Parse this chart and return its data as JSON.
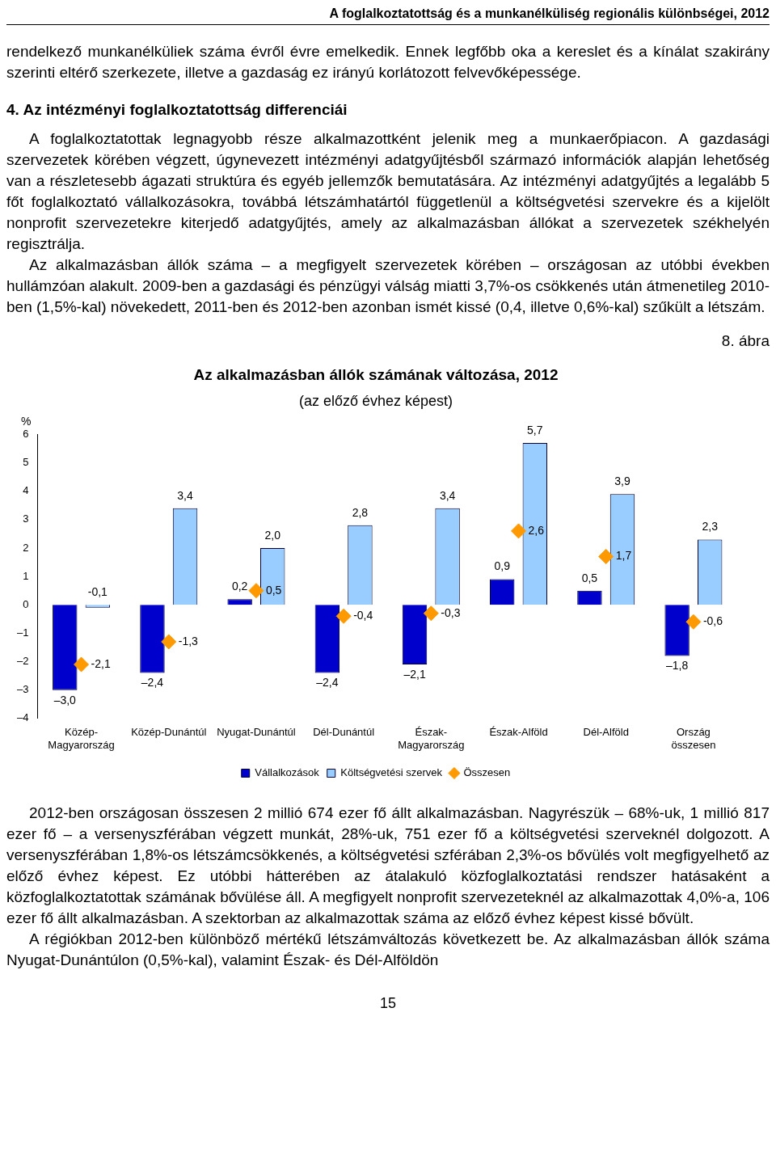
{
  "chart_data": {
    "type": "bar",
    "title": "Az alkalmazásban állók számának változása, 2012",
    "subtitle": "(az előző évhez képest)",
    "ylabel": "%",
    "categories": [
      "Közép-\nMagyarország",
      "Közép-Dunántúl",
      "Nyugat-Dunántúl",
      "Dél-Dunántúl",
      "Észak-\nMagyarország",
      "Észak-Alföld",
      "Dél-Alföld",
      "Ország\nösszesen"
    ],
    "series": [
      {
        "name": "Vállalkozások",
        "color": "#0000cc",
        "values": [
          -3.0,
          -2.4,
          0.2,
          -2.4,
          -2.1,
          0.9,
          0.5,
          -1.8
        ],
        "value_labels": [
          "–3,0",
          "–2,4",
          "0,2",
          "–2,4",
          "–2,1",
          "0,9",
          "0,5",
          "–1,8"
        ]
      },
      {
        "name": "Költségvetési szervek",
        "color": "#99ccff",
        "values": [
          -0.1,
          3.4,
          2.0,
          2.8,
          3.4,
          5.7,
          3.9,
          2.3
        ],
        "value_labels": [
          "-0,1",
          "3,4",
          "2,0",
          "2,8",
          "3,4",
          "5,7",
          "3,9",
          "2,3"
        ]
      },
      {
        "name": "Összesen",
        "type": "scatter",
        "color": "#ff9900",
        "marker": "diamond",
        "x": [
          "Közép-\nMagyarország",
          "Közép-Dunántúl",
          "Nyugat-Dunántúl",
          "Dél-Dunántúl",
          "Észak-\nMagyarország",
          "Észak-Alföld",
          "Dél-Alföld",
          "Ország\nösszesen"
        ],
        "values": [
          -2.1,
          -1.3,
          0.5,
          -0.4,
          -0.3,
          2.6,
          1.7,
          -0.6
        ],
        "value_labels": [
          "-2,1",
          "-1,3",
          "0,5",
          "-0,4",
          "-0,3",
          "2,6",
          "1,7",
          "-0,6"
        ]
      }
    ],
    "ylim": [
      -4,
      6
    ],
    "yticks": [
      {
        "value": -4,
        "label": "–4"
      },
      {
        "value": -3,
        "label": "–3"
      },
      {
        "value": -2,
        "label": "–2"
      },
      {
        "value": -1,
        "label": "–1"
      },
      0,
      1,
      2,
      3,
      4,
      5,
      6
    ],
    "grid": false,
    "legend": "bottom",
    "annotations": [
      "A foglalkoztatottság és a munkanélküliség regionális különbségei, 2012",
      "rendelkező munkanélküliek száma évről évre emelkedik. Ennek legfőbb oka a kereslet és a kínálat szakirány szerinti eltérő szerkezete, illetve a gazdaság ez irányú korlátozott felvevőképessége.",
      "4. Az intézményi foglalkoztatottság differenciái",
      "A foglalkoztatottak legnagyobb része alkalmazottként jelenik meg a munkaerőpiacon. A gazdasági szervezetek körében végzett, úgynevezett intézményi adatgyűjtésből származó információk alapján lehetőség van a részletesebb ágazati struktúra és egyéb jellemzők bemutatására. Az intézményi adatgyűjtés a legalább 5 főt foglalkoztató vállalkozásokra, továbbá létszámhatártól függetlenül a költségvetési szervekre és a kijelölt nonprofit szervezetekre kiterjedő adatgyűjtés, amely az alkalmazásban állókat a szervezetek székhelyén regisztrálja.",
      "Az alkalmazásban állók száma – a megfigyelt szervezetek körében – országosan az utóbbi években hullámzóan alakult. 2009-ben a gazdasági és pénzügyi válság miatti 3,7%-os csökkenés után átmenetileg 2010-ben (1,5%-kal) növekedett, 2011-ben és 2012-ben azonban ismét kissé (0,4, illetve 0,6%-kal) szűkült a létszám.",
      "8. ábra",
      "2012-ben országosan összesen 2 millió 674 ezer fő állt alkalmazásban. Nagyrészük – 68%-uk, 1 millió 817 ezer fő – a versenyszférában végzett munkát, 28%-uk, 751 ezer fő a költségvetési szerveknél dolgozott. A versenyszférában 1,8%-os létszámcsökkenés, a költségvetési szférában 2,3%-os bővülés volt megfigyelhető az előző évhez képest. Ez utóbbi hátterében az átalakuló közfoglalkoztatási rendszer hatásaként a közfoglalkoztatottak számának bővülése áll. A megfigyelt nonprofit szervezeteknél az alkalmazottak 4,0%-a, 106 ezer fő állt alkalmazásban. A szektorban az alkalmazottak száma az előző évhez képest kissé bővült.",
      "A régiókban 2012-ben különböző mértékű létszámváltozás következett be. Az alkalmazásban állók száma Nyugat-Dunántúlon (0,5%-kal), valamint Észak- és Dél-Alföldön",
      "15"
    ]
  }
}
